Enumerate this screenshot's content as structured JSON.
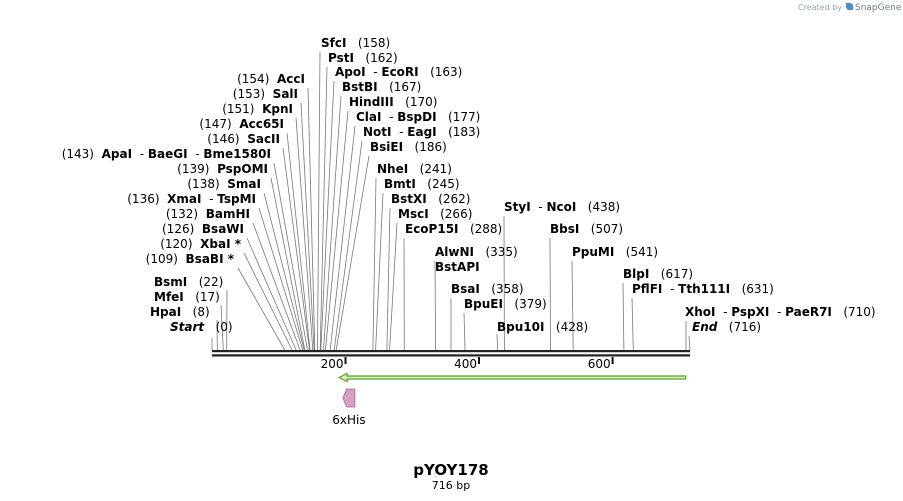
{
  "header": {
    "credit_text": "Created by",
    "brand": "SnapGene",
    "brand_icon": "snapgene-logo-icon"
  },
  "plasmid": {
    "name": "pYOY178",
    "length_label": "716 bp",
    "length_bp": 716
  },
  "ruler": {
    "ticks": [
      {
        "bp": 200,
        "label": "200"
      },
      {
        "bp": 400,
        "label": "400"
      },
      {
        "bp": 600,
        "label": "600"
      }
    ]
  },
  "colors": {
    "backbone": "#222222",
    "leader": "#777777",
    "arrow_fill": "#dcefc0",
    "arrow_stroke": "#5aa02c",
    "feature_fill": "#d9a0c4",
    "feature_stroke": "#9a6a88"
  },
  "features": [
    {
      "name": "6xHis",
      "start_bp": 196,
      "end_bp": 214,
      "direction": "reverse",
      "color": "#d9a0c4"
    },
    {
      "name": "orf-arrow",
      "start_bp": 190,
      "end_bp": 710,
      "direction": "reverse",
      "color": "#dcefc0"
    }
  ],
  "sites": [
    {
      "parts": [
        "Start"
      ],
      "italic": true,
      "pos": "(0)",
      "bp": 0
    },
    {
      "parts": [
        "HpaI"
      ],
      "pos": "(8)",
      "bp": 8
    },
    {
      "parts": [
        "MfeI"
      ],
      "pos": "(17)",
      "bp": 17
    },
    {
      "parts": [
        "BsmI"
      ],
      "pos": "(22)",
      "bp": 22
    },
    {
      "parts": [
        "BsaBI *"
      ],
      "pos": "(109)",
      "bp": 109
    },
    {
      "parts": [
        "XbaI *"
      ],
      "pos": "(120)",
      "bp": 120
    },
    {
      "parts": [
        "BsaWI"
      ],
      "pos": "(126)",
      "bp": 126
    },
    {
      "parts": [
        "BamHI"
      ],
      "pos": "(132)",
      "bp": 132
    },
    {
      "parts": [
        "XmaI",
        "TspMI"
      ],
      "pos": "(136)",
      "bp": 136
    },
    {
      "parts": [
        "SmaI"
      ],
      "pos": "(138)",
      "bp": 138
    },
    {
      "parts": [
        "PspOMI"
      ],
      "pos": "(139)",
      "bp": 139
    },
    {
      "parts": [
        "ApaI",
        "BaeGI",
        "Bme1580I"
      ],
      "pos": "(143)",
      "bp": 143
    },
    {
      "parts": [
        "SacII"
      ],
      "pos": "(146)",
      "bp": 146
    },
    {
      "parts": [
        "Acc65I"
      ],
      "pos": "(147)",
      "bp": 147
    },
    {
      "parts": [
        "KpnI"
      ],
      "pos": "(151)",
      "bp": 151
    },
    {
      "parts": [
        "SalI"
      ],
      "pos": "(153)",
      "bp": 153
    },
    {
      "parts": [
        "AccI"
      ],
      "pos": "(154)",
      "bp": 154
    },
    {
      "parts": [
        "SfcI"
      ],
      "pos": "(158)",
      "bp": 158
    },
    {
      "parts": [
        "PstI"
      ],
      "pos": "(162)",
      "bp": 162
    },
    {
      "parts": [
        "ApoI",
        "EcoRI"
      ],
      "pos": "(163)",
      "bp": 163
    },
    {
      "parts": [
        "BstBI"
      ],
      "pos": "(167)",
      "bp": 167
    },
    {
      "parts": [
        "HindIII"
      ],
      "pos": "(170)",
      "bp": 170
    },
    {
      "parts": [
        "ClaI",
        "BspDI"
      ],
      "pos": "(177)",
      "bp": 177
    },
    {
      "parts": [
        "NotI",
        "EagI"
      ],
      "pos": "(183)",
      "bp": 183
    },
    {
      "parts": [
        "BsiEI"
      ],
      "pos": "(186)",
      "bp": 186
    },
    {
      "parts": [
        "NheI"
      ],
      "pos": "(241)",
      "bp": 241
    },
    {
      "parts": [
        "BmtI"
      ],
      "pos": "(245)",
      "bp": 245
    },
    {
      "parts": [
        "BstXI"
      ],
      "pos": "(262)",
      "bp": 262
    },
    {
      "parts": [
        "MscI"
      ],
      "pos": "(266)",
      "bp": 266
    },
    {
      "parts": [
        "EcoP15I"
      ],
      "pos": "(288)",
      "bp": 288
    },
    {
      "parts": [
        "AlwNI"
      ],
      "pos": "(335)",
      "bp": 335
    },
    {
      "parts": [
        "BstAPI"
      ],
      "pos": "",
      "bp": 335
    },
    {
      "parts": [
        "BsaI"
      ],
      "pos": "(358)",
      "bp": 358
    },
    {
      "parts": [
        "BpuEI"
      ],
      "pos": "(379)",
      "bp": 379
    },
    {
      "parts": [
        "Bpu10I"
      ],
      "pos": "(428)",
      "bp": 428
    },
    {
      "parts": [
        "StyI",
        "NcoI"
      ],
      "pos": "(438)",
      "bp": 438
    },
    {
      "parts": [
        "BbsI"
      ],
      "pos": "(507)",
      "bp": 507
    },
    {
      "parts": [
        "PpuMI"
      ],
      "pos": "(541)",
      "bp": 541
    },
    {
      "parts": [
        "BlpI"
      ],
      "pos": "(617)",
      "bp": 617
    },
    {
      "parts": [
        "PflFI",
        "Tth111I"
      ],
      "pos": "(631)",
      "bp": 631
    },
    {
      "parts": [
        "XhoI",
        "PspXI",
        "PaeR7I"
      ],
      "pos": "(710)",
      "bp": 710
    },
    {
      "parts": [
        "End"
      ],
      "italic": true,
      "pos": "(716)",
      "bp": 716
    }
  ]
}
